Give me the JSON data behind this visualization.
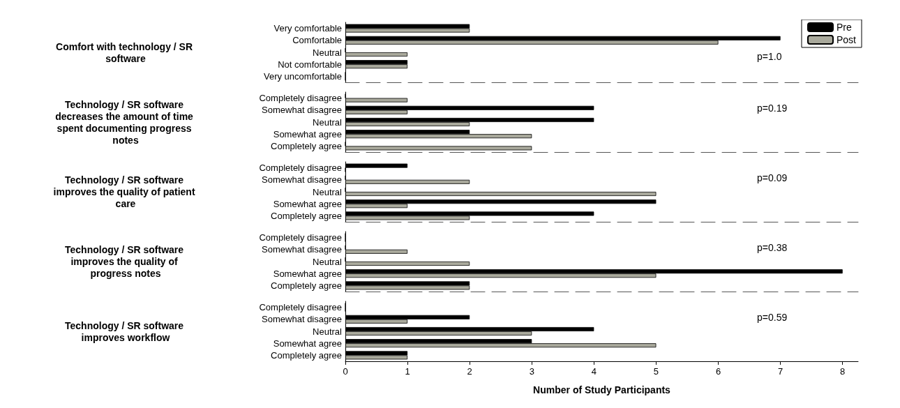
{
  "chart_data": [
    {
      "type": "bar",
      "orientation": "horizontal",
      "ylabel": "Comfort with technology / SR software",
      "categories": [
        "Very comfortable",
        "Comfortable",
        "Neutral",
        "Not comfortable",
        "Very uncomfortable"
      ],
      "series": [
        {
          "name": "Pre",
          "color": "#000000",
          "values": [
            2,
            7,
            0,
            1,
            0
          ]
        },
        {
          "name": "Post",
          "color": "#a9a99c",
          "values": [
            2,
            6,
            1,
            1,
            0
          ]
        }
      ],
      "xlim": [
        0,
        8.25
      ],
      "xticks": [
        0,
        1,
        2,
        3,
        4,
        5,
        6,
        7,
        8
      ],
      "tick_labels": "y",
      "legend": "top right",
      "annotations": [
        "p=1.0"
      ]
    },
    {
      "type": "bar",
      "orientation": "horizontal",
      "ylabel": "Technology / SR software decreases the amount of time spent documenting progress notes",
      "categories": [
        "Completely disagree",
        "Somewhat disagree",
        "Neutral",
        "Somewhat agree",
        "Completely agree"
      ],
      "series": [
        {
          "color": "#000000",
          "values": [
            0,
            4,
            4,
            2,
            0
          ]
        },
        {
          "color": "#a9a99c",
          "values": [
            1,
            1,
            2,
            3,
            3
          ]
        }
      ],
      "xlim": [
        0,
        8.25
      ],
      "xticks": [
        0,
        1,
        2,
        3,
        4,
        5,
        6,
        7,
        8
      ],
      "tick_labels": "y",
      "annotations": [
        "p=0.19"
      ]
    },
    {
      "type": "bar",
      "orientation": "horizontal",
      "ylabel": "Technology / SR software improves the quality of patient care",
      "categories": [
        "Completely disagree",
        "Somewhat disagree",
        "Neutral",
        "Somewhat agree",
        "Completely agree"
      ],
      "series": [
        {
          "color": "#000000",
          "values": [
            1,
            0,
            0,
            5,
            4
          ]
        },
        {
          "color": "#a9a99c",
          "values": [
            0,
            2,
            5,
            1,
            2
          ]
        }
      ],
      "xlim": [
        0,
        8.25
      ],
      "xticks": [
        0,
        1,
        2,
        3,
        4,
        5,
        6,
        7,
        8
      ],
      "tick_labels": "y",
      "annotations": [
        "p=0.09"
      ]
    },
    {
      "type": "bar",
      "orientation": "horizontal",
      "ylabel": "Technology / SR software improves the quality of progress notes",
      "categories": [
        "Completely disagree",
        "Somewhat disagree",
        "Neutral",
        "Somewhat agree",
        "Completely agree"
      ],
      "series": [
        {
          "color": "#000000",
          "values": [
            0,
            0,
            0,
            8,
            2
          ]
        },
        {
          "color": "#a9a99c",
          "values": [
            0,
            1,
            2,
            5,
            2
          ]
        }
      ],
      "xlim": [
        0,
        8.25
      ],
      "xticks": [
        0,
        1,
        2,
        3,
        4,
        5,
        6,
        7,
        8
      ],
      "tick_labels": "y",
      "annotations": [
        "p=0.38"
      ]
    },
    {
      "type": "bar",
      "orientation": "horizontal",
      "ylabel": "Technology / SR software improves workflow",
      "categories": [
        "Completely disagree",
        "Somewhat disagree",
        "Neutral",
        "Somewhat agree",
        "Completely agree"
      ],
      "series": [
        {
          "color": "#000000",
          "values": [
            0,
            2,
            4,
            3,
            1
          ]
        },
        {
          "color": "#a9a99c",
          "values": [
            0,
            1,
            3,
            5,
            1
          ]
        }
      ],
      "xlim": [
        0,
        8.25
      ],
      "xticks": [
        0,
        1,
        2,
        3,
        4,
        5,
        6,
        7,
        8
      ],
      "xlabel": "Number of Study Participants",
      "annotations": [
        "p=0.59"
      ]
    }
  ]
}
